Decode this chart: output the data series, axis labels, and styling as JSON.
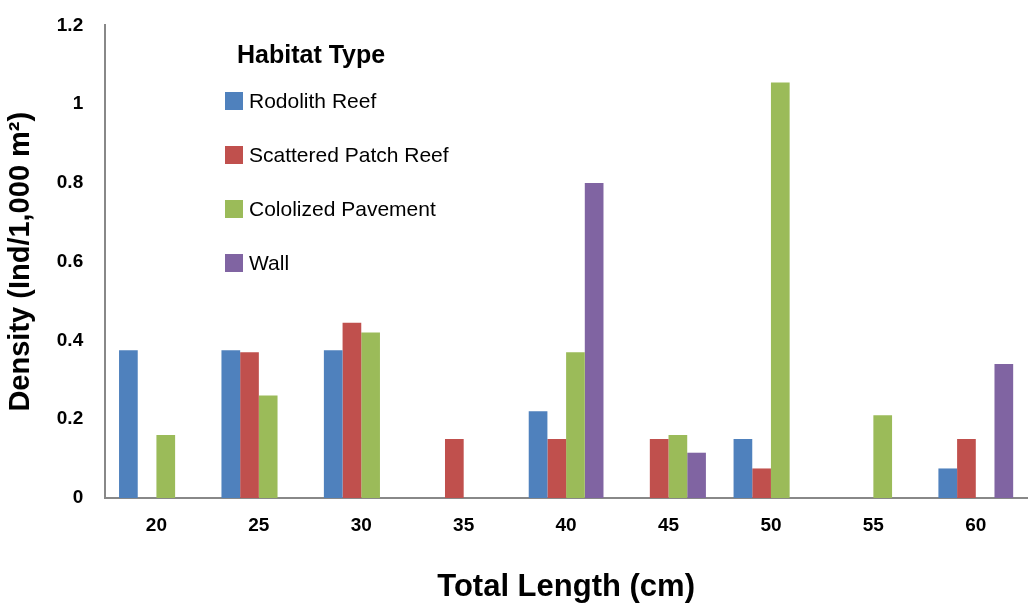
{
  "chart_data": {
    "type": "bar",
    "xlabel": "Total Length (cm)",
    "ylabel": "Density (Ind/1,000 m²)",
    "legend_title": "Habitat Type",
    "legend": "top left",
    "grid": false,
    "categories": [
      "20",
      "25",
      "30",
      "35",
      "40",
      "45",
      "50",
      "55",
      "60"
    ],
    "ylim": [
      0,
      1.2
    ],
    "yticks": [
      0,
      {
        "value": 0.2,
        "label": "0.2"
      },
      {
        "value": 0.4,
        "label": "0.4"
      },
      {
        "value": 0.6,
        "label": "0.6"
      },
      {
        "value": 0.8,
        "label": "0.8"
      },
      1,
      {
        "value": 1.2,
        "label": "1.2"
      }
    ],
    "series": [
      {
        "name": "Rodolith Reef",
        "color": "#4f81bd",
        "values": [
          0.375,
          0.375,
          0.375,
          null,
          0.22,
          null,
          0.15,
          null,
          0.075
        ]
      },
      {
        "name": "Scattered Patch Reef",
        "color": "#c0504d",
        "values": [
          null,
          0.37,
          0.445,
          0.15,
          0.15,
          0.15,
          0.075,
          null,
          0.15
        ]
      },
      {
        "name": "Cololized Pavement",
        "color": "#9bbb59",
        "values": [
          0.16,
          0.26,
          0.42,
          null,
          0.37,
          0.16,
          1.055,
          0.21,
          null
        ]
      },
      {
        "name": "Wall",
        "color": "#8064a2",
        "values": [
          null,
          null,
          null,
          null,
          0.8,
          0.115,
          null,
          null,
          0.34
        ]
      }
    ]
  }
}
